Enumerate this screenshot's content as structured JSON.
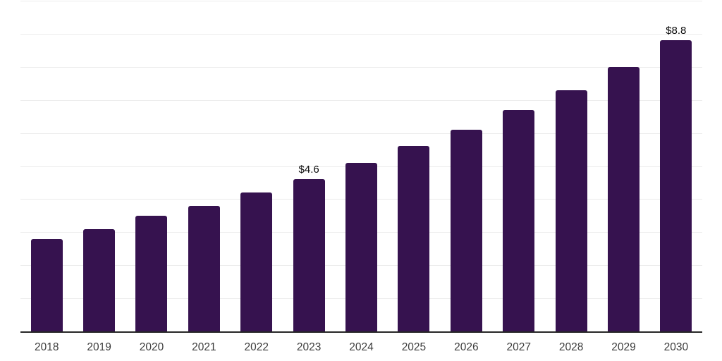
{
  "colors": {
    "background": "#ffffff",
    "bar": "#36124F",
    "gridline": "#ececec",
    "axis_line": "#262626",
    "tick_label": "#3d3d3d",
    "data_label": "#0a0a0a"
  },
  "chart_data": {
    "type": "bar",
    "title": "",
    "xlabel": "",
    "ylabel": "",
    "categories": [
      "2018",
      "2019",
      "2020",
      "2021",
      "2022",
      "2023",
      "2024",
      "2025",
      "2026",
      "2027",
      "2028",
      "2029",
      "2030"
    ],
    "values": [
      2.8,
      3.1,
      3.5,
      3.8,
      4.2,
      4.6,
      5.1,
      5.6,
      6.1,
      6.7,
      7.3,
      8.0,
      8.8
    ],
    "data_labels": [
      "",
      "",
      "",
      "",
      "",
      "$4.6",
      "",
      "",
      "",
      "",
      "",
      "",
      "$8.8"
    ],
    "ylim": [
      0,
      10
    ],
    "gridline_step": 1,
    "grid": "horizontal",
    "y_axis_tick_labels_visible": false,
    "legend": "none"
  }
}
